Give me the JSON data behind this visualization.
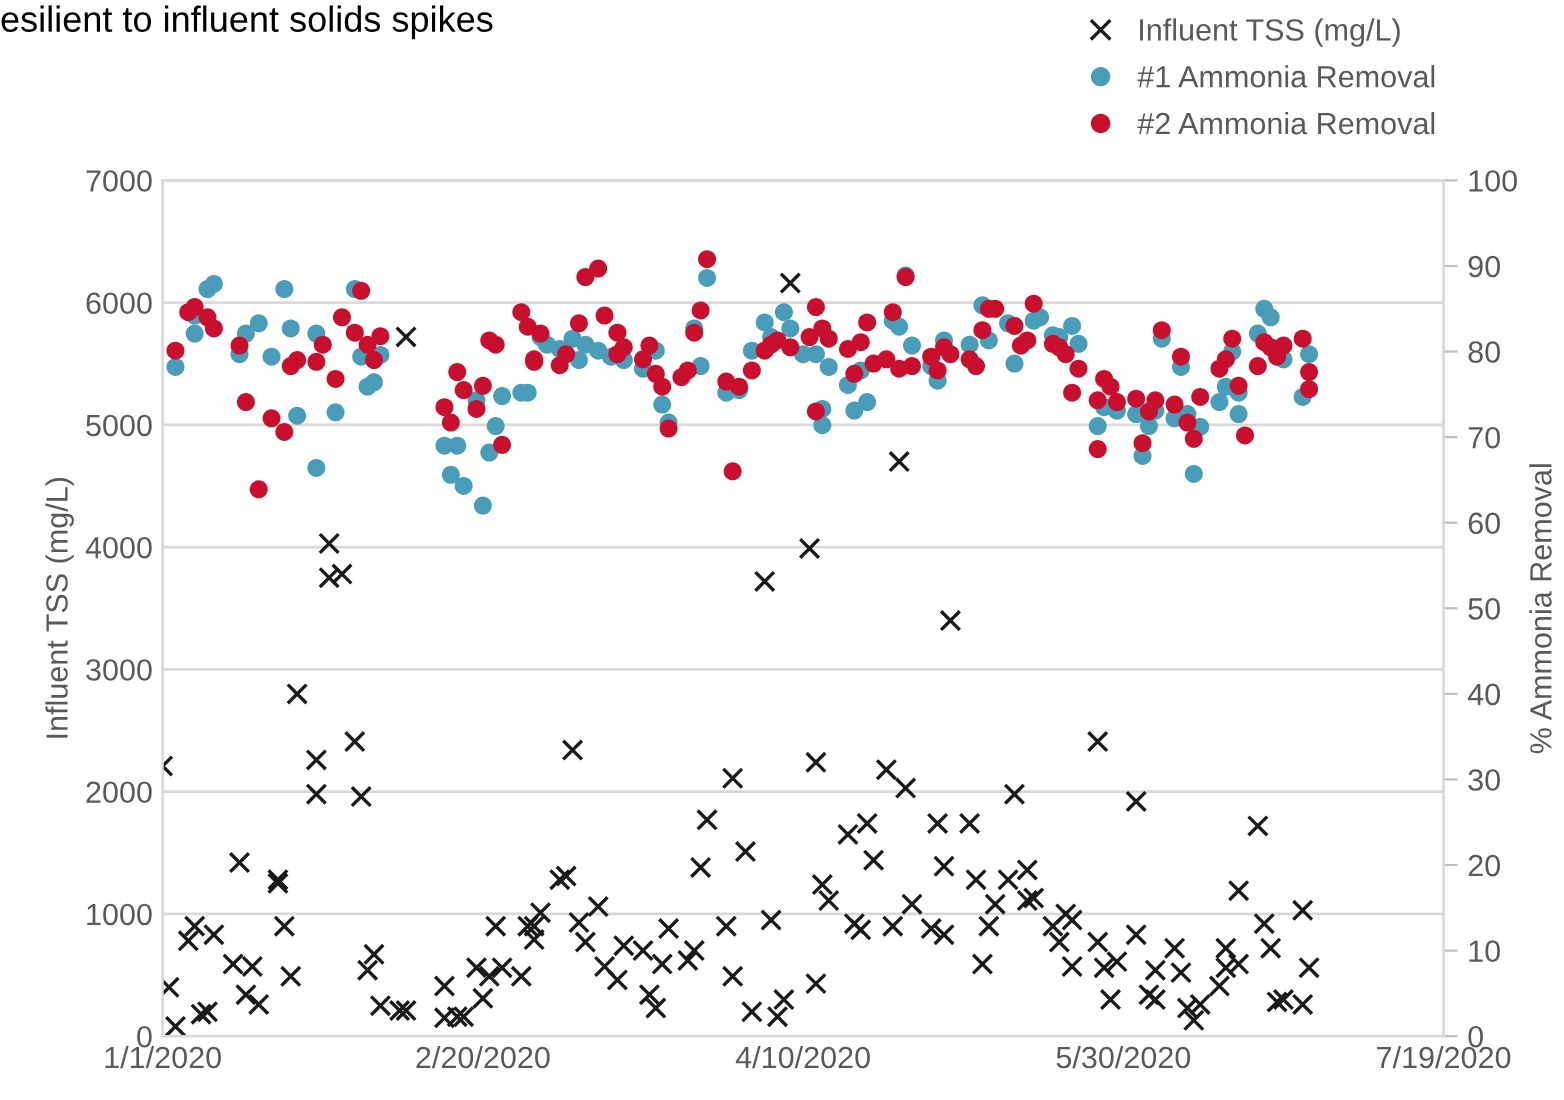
{
  "chart_data": {
    "type": "scatter",
    "title": "esilient to influent solids spikes",
    "ylabel": "Influent TSS (mg/L)",
    "y2label": "% Ammonia Removal",
    "xlim": [
      "2020-01-01",
      "2020-07-19"
    ],
    "xticks": [
      {
        "value": "2020-01-01",
        "label": "1/1/2020"
      },
      {
        "value": "2020-02-20",
        "label": "2/20/2020"
      },
      {
        "value": "2020-04-10",
        "label": "4/10/2020"
      },
      {
        "value": "2020-05-30",
        "label": "5/30/2020"
      },
      {
        "value": "2020-07-19",
        "label": "7/19/2020"
      }
    ],
    "ylim": [
      0,
      7000
    ],
    "yticks": [
      0,
      1000,
      2000,
      3000,
      4000,
      5000,
      6000,
      7000
    ],
    "y2lim": [
      0,
      100
    ],
    "y2ticks": [
      0,
      10,
      20,
      30,
      40,
      50,
      60,
      70,
      80,
      90,
      100
    ],
    "grid": "y",
    "legend": "top right",
    "series": [
      {
        "name": "Influent TSS (mg/L)",
        "color": "#1a1a1a",
        "marker": "cross",
        "x": [
          "2020-01-02",
          "2020-01-01",
          "2020-01-03",
          "2020-01-05",
          "2020-01-06",
          "2020-01-07",
          "2020-01-08",
          "2020-01-09",
          "2020-01-12",
          "2020-01-13",
          "2020-01-14",
          "2020-01-15",
          "2020-01-16",
          "2020-01-19",
          "2020-01-19",
          "2020-01-20",
          "2020-01-21",
          "2020-01-22",
          "2020-01-25",
          "2020-01-25",
          "2020-01-27",
          "2020-01-27",
          "2020-01-29",
          "2020-01-31",
          "2020-02-01",
          "2020-02-02",
          "2020-02-03",
          "2020-02-04",
          "2020-02-07",
          "2020-02-08",
          "2020-02-08",
          "2020-02-14",
          "2020-02-14",
          "2020-02-16",
          "2020-02-17",
          "2020-02-19",
          "2020-02-20",
          "2020-02-21",
          "2020-02-22",
          "2020-02-23",
          "2020-02-26",
          "2020-02-27",
          "2020-02-28",
          "2020-02-28",
          "2020-02-29",
          "2020-03-03",
          "2020-03-04",
          "2020-03-05",
          "2020-03-06",
          "2020-03-07",
          "2020-03-09",
          "2020-03-10",
          "2020-03-12",
          "2020-03-13",
          "2020-03-16",
          "2020-03-17",
          "2020-03-18",
          "2020-03-19",
          "2020-03-20",
          "2020-03-23",
          "2020-03-24",
          "2020-03-25",
          "2020-03-26",
          "2020-03-29",
          "2020-03-30",
          "2020-03-30",
          "2020-04-01",
          "2020-04-02",
          "2020-04-04",
          "2020-04-05",
          "2020-04-06",
          "2020-04-07",
          "2020-04-08",
          "2020-04-11",
          "2020-04-12",
          "2020-04-12",
          "2020-04-13",
          "2020-04-14",
          "2020-04-17",
          "2020-04-18",
          "2020-04-19",
          "2020-04-20",
          "2020-04-21",
          "2020-04-23",
          "2020-04-24",
          "2020-04-25",
          "2020-04-26",
          "2020-04-27",
          "2020-04-30",
          "2020-05-01",
          "2020-05-02",
          "2020-05-02",
          "2020-05-03",
          "2020-05-06",
          "2020-05-07",
          "2020-05-08",
          "2020-05-09",
          "2020-05-10",
          "2020-05-12",
          "2020-05-13",
          "2020-05-15",
          "2020-05-15",
          "2020-05-16",
          "2020-05-19",
          "2020-05-20",
          "2020-05-21",
          "2020-05-22",
          "2020-05-22",
          "2020-05-26",
          "2020-05-26",
          "2020-05-27",
          "2020-05-28",
          "2020-05-29",
          "2020-06-01",
          "2020-06-01",
          "2020-06-03",
          "2020-06-04",
          "2020-06-04",
          "2020-06-07",
          "2020-06-08",
          "2020-06-09",
          "2020-06-10",
          "2020-06-11",
          "2020-06-14",
          "2020-06-15",
          "2020-06-15",
          "2020-06-17",
          "2020-06-17",
          "2020-06-20",
          "2020-06-21",
          "2020-06-22",
          "2020-06-23",
          "2020-06-24",
          "2020-06-27",
          "2020-06-27",
          "2020-06-28"
        ],
        "values": [
          400,
          2210,
          80,
          780,
          900,
          180,
          200,
          830,
          590,
          1420,
          340,
          570,
          260,
          1280,
          1250,
          900,
          490,
          2800,
          2260,
          1980,
          3750,
          4030,
          3780,
          2410,
          1960,
          540,
          670,
          250,
          210,
          5720,
          210,
          410,
          150,
          160,
          160,
          560,
          310,
          490,
          900,
          560,
          490,
          900,
          790,
          900,
          1010,
          1280,
          1310,
          2340,
          930,
          770,
          1060,
          570,
          460,
          740,
          700,
          340,
          230,
          590,
          880,
          620,
          700,
          1380,
          1770,
          900,
          2110,
          490,
          1510,
          200,
          3720,
          950,
          160,
          300,
          6160,
          3990,
          2240,
          430,
          1240,
          1110,
          1650,
          920,
          870,
          1740,
          1440,
          2180,
          900,
          4700,
          2030,
          1080,
          880,
          1740,
          1390,
          830,
          3400,
          1740,
          1280,
          590,
          900,
          1080,
          1280,
          1980,
          1110,
          1360,
          1130,
          900,
          770,
          1000,
          570,
          950,
          2410,
          770,
          560,
          300,
          610,
          1920,
          830,
          340,
          300,
          540,
          720,
          520,
          230,
          130,
          260,
          410,
          560,
          720,
          590,
          1190,
          1720,
          920,
          720,
          280,
          300,
          1030,
          260,
          560
        ]
      },
      {
        "name": "#1 Ammonia Removal",
        "color": "#4a9db8",
        "marker": "circle",
        "axis": "y2",
        "x": [
          "2020-01-03",
          "2020-01-06",
          "2020-01-06",
          "2020-01-08",
          "2020-01-09",
          "2020-01-13",
          "2020-01-14",
          "2020-01-16",
          "2020-01-18",
          "2020-01-20",
          "2020-01-21",
          "2020-01-22",
          "2020-01-25",
          "2020-01-25",
          "2020-01-28",
          "2020-01-31",
          "2020-02-01",
          "2020-02-02",
          "2020-02-03",
          "2020-02-04",
          "2020-02-14",
          "2020-02-16",
          "2020-02-15",
          "2020-02-17",
          "2020-02-19",
          "2020-02-20",
          "2020-02-21",
          "2020-02-22",
          "2020-02-23",
          "2020-02-26",
          "2020-02-27",
          "2020-02-29",
          "2020-03-01",
          "2020-03-03",
          "2020-03-05",
          "2020-03-06",
          "2020-03-07",
          "2020-03-09",
          "2020-03-11",
          "2020-03-13",
          "2020-03-16",
          "2020-03-18",
          "2020-03-19",
          "2020-03-20",
          "2020-03-23",
          "2020-03-24",
          "2020-03-25",
          "2020-03-26",
          "2020-03-29",
          "2020-03-31",
          "2020-04-02",
          "2020-04-04",
          "2020-04-05",
          "2020-04-07",
          "2020-04-08",
          "2020-04-10",
          "2020-04-12",
          "2020-04-13",
          "2020-04-13",
          "2020-04-14",
          "2020-04-17",
          "2020-04-18",
          "2020-04-19",
          "2020-04-20",
          "2020-04-24",
          "2020-04-25",
          "2020-04-26",
          "2020-04-27",
          "2020-04-30",
          "2020-05-01",
          "2020-05-02",
          "2020-05-06",
          "2020-05-08",
          "2020-05-09",
          "2020-05-13",
          "2020-05-12",
          "2020-05-16",
          "2020-05-17",
          "2020-05-19",
          "2020-05-20",
          "2020-05-22",
          "2020-05-23",
          "2020-05-26",
          "2020-05-27",
          "2020-05-29",
          "2020-06-01",
          "2020-06-02",
          "2020-06-03",
          "2020-06-04",
          "2020-06-05",
          "2020-06-07",
          "2020-06-08",
          "2020-06-09",
          "2020-06-10",
          "2020-06-11",
          "2020-06-14",
          "2020-06-15",
          "2020-06-16",
          "2020-06-17",
          "2020-06-17",
          "2020-06-20",
          "2020-06-21",
          "2020-06-22",
          "2020-06-24",
          "2020-06-27",
          "2020-06-28"
        ],
        "values": [
          78.2,
          84.2,
          82.1,
          87.3,
          87.9,
          79.7,
          82.1,
          83.3,
          79.4,
          87.3,
          82.7,
          72.5,
          66.4,
          82.1,
          72.9,
          87.3,
          79.4,
          75.9,
          76.4,
          79.6,
          69.0,
          69.0,
          65.6,
          64.3,
          74.3,
          62.0,
          68.2,
          71.3,
          74.8,
          75.2,
          75.2,
          81.7,
          80.8,
          80.3,
          81.5,
          79.0,
          80.8,
          80.1,
          79.4,
          79.0,
          78.0,
          80.1,
          73.8,
          71.7,
          null,
          82.7,
          78.3,
          88.6,
          75.2,
          75.5,
          80.1,
          83.4,
          81.7,
          84.6,
          82.7,
          79.7,
          79.7,
          71.4,
          73.3,
          78.2,
          76.1,
          73.1,
          77.8,
          74.1,
          83.6,
          82.9,
          88.9,
          80.7,
          78.3,
          76.6,
          81.3,
          80.8,
          85.4,
          81.3,
          78.6,
          83.3,
          83.6,
          84.0,
          81.9,
          81.7,
          83.0,
          80.9,
          71.3,
          73.5,
          73.1,
          72.7,
          67.8,
          71.3,
          73.1,
          81.5,
          72.2,
          78.2,
          72.7,
          65.7,
          71.2,
          74.1,
          75.9,
          80.0,
          75.2,
          72.7,
          82.1,
          85.0,
          84.0,
          79.1,
          74.7,
          79.7
        ]
      },
      {
        "name": "#2 Ammonia Removal",
        "color": "#c8102e",
        "marker": "circle",
        "axis": "y2",
        "x": [
          "2020-01-03",
          "2020-01-05",
          "2020-01-06",
          "2020-01-08",
          "2020-01-09",
          "2020-01-13",
          "2020-01-14",
          "2020-01-18",
          "2020-01-16",
          "2020-01-20",
          "2020-01-21",
          "2020-01-22",
          "2020-01-25",
          "2020-01-26",
          "2020-01-28",
          "2020-01-29",
          "2020-01-31",
          "2020-02-01",
          "2020-02-02",
          "2020-02-03",
          "2020-02-04",
          "2020-02-14",
          "2020-02-15",
          "2020-02-16",
          "2020-02-17",
          "2020-02-19",
          "2020-02-20",
          "2020-02-21",
          "2020-02-22",
          "2020-02-23",
          "2020-02-26",
          "2020-02-27",
          "2020-02-28",
          "2020-02-28",
          "2020-02-29",
          "2020-03-03",
          "2020-03-04",
          "2020-03-06",
          "2020-03-07",
          "2020-03-09",
          "2020-03-10",
          "2020-03-12",
          "2020-03-12",
          "2020-03-13",
          "2020-03-16",
          "2020-03-17",
          "2020-03-18",
          "2020-03-19",
          "2020-03-20",
          "2020-03-22",
          "2020-03-23",
          "2020-03-24",
          "2020-03-25",
          "2020-03-26",
          "2020-03-29",
          "2020-03-30",
          "2020-03-31",
          "2020-04-02",
          "2020-04-04",
          "2020-04-05",
          "2020-04-06",
          "2020-04-08",
          "2020-04-11",
          "2020-04-12",
          "2020-04-12",
          "2020-04-13",
          "2020-04-14",
          "2020-04-17",
          "2020-04-18",
          "2020-04-19",
          "2020-04-20",
          "2020-04-21",
          "2020-04-23",
          "2020-04-24",
          "2020-04-25",
          "2020-04-26",
          "2020-04-27",
          "2020-04-30",
          "2020-05-01",
          "2020-05-02",
          "2020-05-03",
          "2020-05-06",
          "2020-05-07",
          "2020-05-08",
          "2020-05-09",
          "2020-05-10",
          "2020-05-13",
          "2020-05-14",
          "2020-05-15",
          "2020-05-16",
          "2020-05-19",
          "2020-05-20",
          "2020-05-21",
          "2020-05-23",
          "2020-05-22",
          "2020-05-26",
          "2020-05-26",
          "2020-05-27",
          "2020-05-28",
          "2020-05-29",
          "2020-06-01",
          "2020-06-02",
          "2020-06-03",
          "2020-06-04",
          "2020-06-05",
          "2020-06-07",
          "2020-06-08",
          "2020-06-09",
          "2020-06-10",
          "2020-06-11",
          "2020-06-14",
          "2020-06-15",
          "2020-06-16",
          "2020-06-17",
          "2020-06-18",
          "2020-06-20",
          "2020-06-21",
          "2020-06-22",
          "2020-06-23",
          "2020-06-24",
          "2020-06-27",
          "2020-06-28",
          "2020-06-28"
        ],
        "values": [
          80.1,
          84.6,
          85.2,
          84.0,
          82.7,
          80.7,
          74.1,
          72.2,
          63.9,
          70.6,
          78.3,
          79.0,
          78.8,
          80.8,
          76.8,
          84.0,
          82.2,
          87.1,
          80.8,
          79.0,
          81.8,
          73.5,
          71.7,
          77.6,
          75.5,
          73.3,
          76.0,
          81.3,
          80.8,
          69.1,
          84.6,
          82.9,
          78.8,
          79.1,
          82.1,
          78.4,
          79.7,
          83.3,
          88.7,
          89.7,
          84.2,
          79.7,
          82.2,
          80.5,
          79.1,
          80.7,
          77.4,
          75.9,
          71.0,
          77.0,
          77.8,
          82.2,
          84.8,
          90.8,
          76.5,
          66.0,
          75.9,
          77.8,
          80.1,
          80.8,
          81.3,
          80.5,
          81.7,
          73.0,
          85.2,
          82.7,
          81.5,
          80.3,
          77.4,
          81.1,
          83.4,
          78.6,
          79.1,
          84.6,
          78.0,
          88.7,
          78.3,
          79.4,
          77.8,
          80.5,
          79.7,
          79.1,
          78.3,
          82.5,
          85.0,
          85.0,
          83.0,
          80.7,
          81.3,
          85.6,
          80.9,
          80.5,
          79.7,
          78.0,
          75.2,
          68.6,
          74.3,
          76.8,
          75.9,
          74.1,
          74.5,
          69.3,
          73.0,
          74.3,
          82.5,
          73.8,
          79.4,
          71.7,
          69.8,
          74.7,
          78.0,
          79.1,
          81.5,
          76.0,
          70.2,
          78.3,
          81.1,
          80.5,
          79.4,
          80.7,
          81.5,
          77.6,
          75.6
        ]
      }
    ]
  }
}
